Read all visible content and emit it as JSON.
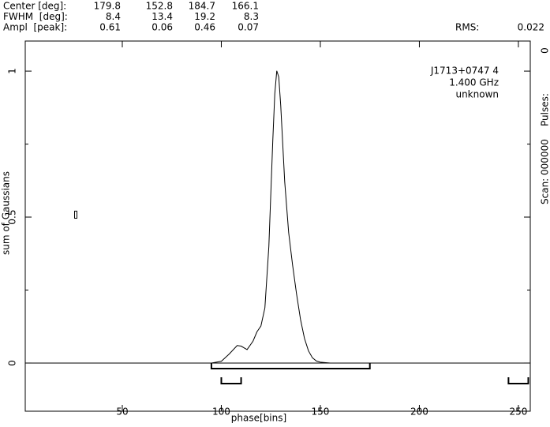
{
  "header": {
    "rows": [
      {
        "label": "Center [deg]:",
        "values": [
          179.8,
          152.8,
          184.7,
          166.1
        ]
      },
      {
        "label": "FWHM  [deg]:",
        "values": [
          8.4,
          13.4,
          19.2,
          8.3
        ]
      },
      {
        "label": "Ampl  [peak]:",
        "values": [
          0.61,
          0.06,
          0.46,
          0.07
        ]
      }
    ],
    "rms_label": "RMS:",
    "rms": 0.022,
    "pulses_label": "Pulses:",
    "pulses": 0,
    "scan": "Scan: 000000"
  },
  "chart_data": {
    "type": "line",
    "annotations": [
      "J1713+0747 4",
      "1.400 GHz",
      "unknown"
    ],
    "xlabel": "phase[bins]",
    "ylabel": "sum of Gaussians",
    "x": [
      1,
      90,
      95,
      100,
      104,
      108,
      110,
      113,
      116,
      118,
      120,
      122,
      124,
      126,
      127,
      128,
      129,
      130,
      132,
      134,
      136,
      138,
      140,
      142,
      144,
      146,
      148,
      150,
      155,
      256
    ],
    "values": [
      0,
      0,
      0,
      0.006,
      0.031,
      0.06,
      0.058,
      0.046,
      0.075,
      0.107,
      0.127,
      0.189,
      0.399,
      0.764,
      0.922,
      1.001,
      0.98,
      0.882,
      0.622,
      0.447,
      0.335,
      0.236,
      0.149,
      0.084,
      0.042,
      0.018,
      0.007,
      0.003,
      0,
      0
    ],
    "color": "#000000",
    "xlim": [
      1,
      256
    ],
    "ylim": [
      -0.165,
      1.103
    ],
    "xticks": [
      50,
      100,
      150,
      200,
      250
    ],
    "yticks": [
      0,
      0.5,
      1
    ],
    "yminor": [
      0.25,
      0.75
    ],
    "windows": [
      [
        95,
        175
      ],
      [
        100,
        110
      ],
      [
        245,
        255
      ]
    ]
  }
}
